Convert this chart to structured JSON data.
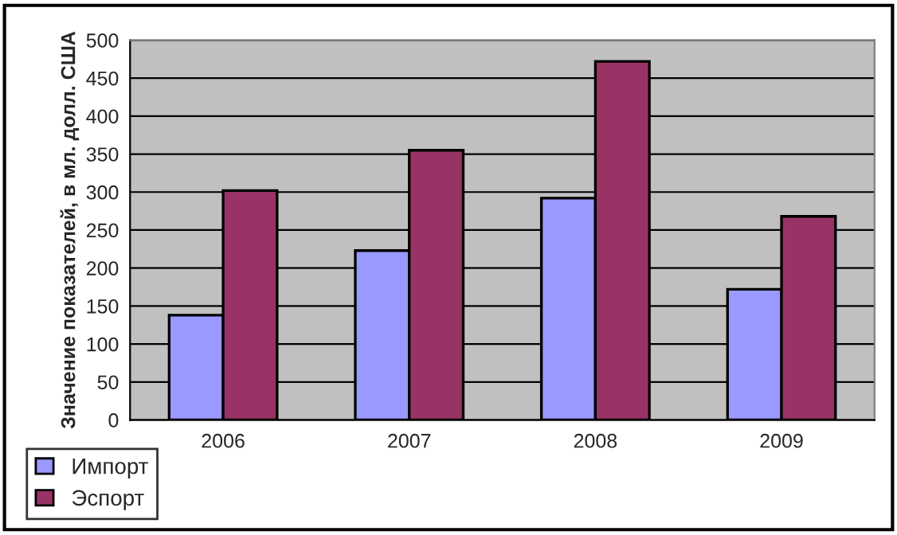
{
  "chart_data": {
    "type": "bar",
    "ylabel": "Значение показателей, в мл. долл. США",
    "categories": [
      "2006",
      "2007",
      "2008",
      "2009"
    ],
    "series": [
      {
        "name": "Импорт",
        "color": "#9999ff",
        "values": [
          138,
          223,
          292,
          172
        ]
      },
      {
        "name": "Эспорт",
        "color": "#993366",
        "values": [
          302,
          355,
          472,
          268
        ]
      }
    ],
    "ylim": [
      0,
      500
    ],
    "yticks": [
      0,
      50,
      100,
      150,
      200,
      250,
      300,
      350,
      400,
      450,
      500
    ],
    "grid": "y",
    "legend": "bottom left"
  }
}
